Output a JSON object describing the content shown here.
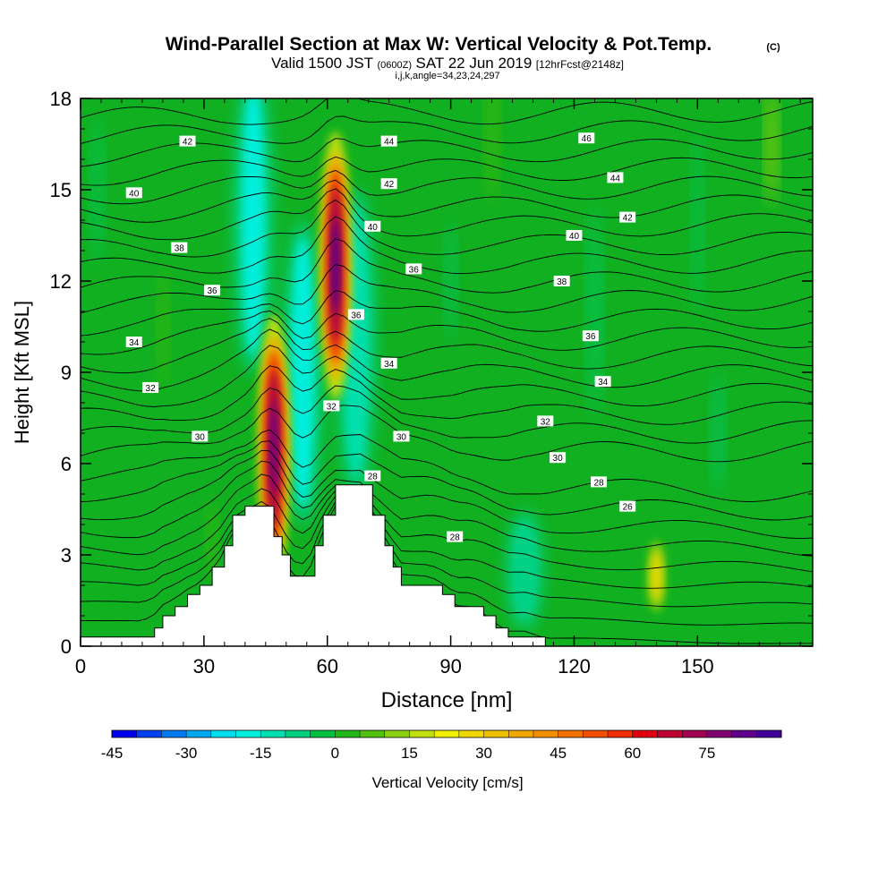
{
  "title": {
    "main": "Wind-Parallel Section at Max W: Vertical Velocity & Pot.Temp.",
    "copyright": "(C)",
    "valid_prefix": "Valid 1500 JST",
    "valid_utc": "(0600Z)",
    "valid_date": "SAT 22 Jun 2019",
    "forecast": "[12hrFcst@2148z]",
    "indices": "i,j,k,angle=34,23,24,297"
  },
  "chart_data": {
    "type": "heatmap",
    "xlabel": "Distance [nm]",
    "ylabel": "Height [Kft MSL]",
    "xlim": [
      0,
      178
    ],
    "ylim": [
      0,
      18
    ],
    "x_ticks": [
      0,
      30,
      60,
      90,
      120,
      150
    ],
    "y_ticks": [
      0,
      3,
      6,
      9,
      12,
      15,
      18
    ],
    "colorbar": {
      "label": "Vertical Velocity [cm/s]",
      "min": -45,
      "max": 90,
      "step": 5,
      "tick_labels": [
        "-45",
        "-30",
        "-15",
        "0",
        "15",
        "30",
        "45",
        "60",
        "75"
      ],
      "colors": [
        "#0000ee",
        "#0040f0",
        "#0078f0",
        "#00a8f0",
        "#00dcf0",
        "#00f0e0",
        "#00e0b0",
        "#00d080",
        "#00c040",
        "#20b818",
        "#50c010",
        "#88d010",
        "#c0e010",
        "#f0f000",
        "#f0d800",
        "#f0c000",
        "#f0a800",
        "#f09000",
        "#f07000",
        "#f05000",
        "#f03000",
        "#e00010",
        "#c00030",
        "#a00050",
        "#800070",
        "#60008c",
        "#40009a"
      ]
    },
    "terrain_kft": [
      [
        0,
        0.3
      ],
      [
        5,
        0.3
      ],
      [
        10,
        0.3
      ],
      [
        15,
        0.3
      ],
      [
        18,
        0.6
      ],
      [
        20,
        1.0
      ],
      [
        23,
        1.3
      ],
      [
        26,
        1.7
      ],
      [
        29,
        2.0
      ],
      [
        32,
        2.6
      ],
      [
        35,
        3.3
      ],
      [
        37,
        4.3
      ],
      [
        40,
        4.6
      ],
      [
        42,
        4.6
      ],
      [
        45,
        4.6
      ],
      [
        47,
        3.6
      ],
      [
        49,
        3.0
      ],
      [
        51,
        2.3
      ],
      [
        55,
        2.3
      ],
      [
        57,
        3.3
      ],
      [
        59,
        4.3
      ],
      [
        62,
        5.3
      ],
      [
        65,
        5.3
      ],
      [
        68,
        5.3
      ],
      [
        71,
        4.3
      ],
      [
        74,
        3.3
      ],
      [
        76,
        2.6
      ],
      [
        78,
        2.0
      ],
      [
        82,
        2.0
      ],
      [
        85,
        2.0
      ],
      [
        88,
        1.7
      ],
      [
        91,
        1.3
      ],
      [
        95,
        1.3
      ],
      [
        98,
        1.0
      ],
      [
        101,
        0.6
      ],
      [
        104,
        0.3
      ],
      [
        108,
        0.3
      ],
      [
        113,
        0.0
      ],
      [
        130,
        0.0
      ],
      [
        178,
        0.0
      ]
    ],
    "updrafts": [
      {
        "x": 47,
        "z": 6.5,
        "w": 80
      },
      {
        "x": 62,
        "z": 12.5,
        "w": 85
      },
      {
        "x": 140,
        "z": 2.3,
        "w": 25
      }
    ],
    "downdrafts": [
      {
        "x": 42,
        "z": 14.0,
        "w": -20
      },
      {
        "x": 54,
        "z": 9.0,
        "w": -18
      },
      {
        "x": 67,
        "z": 10.0,
        "w": -15
      },
      {
        "x": 108,
        "z": 2.5,
        "w": -12
      }
    ],
    "isentrope_labels": [
      {
        "text": "42",
        "x": 26,
        "z": 16.6
      },
      {
        "text": "44",
        "x": 75,
        "z": 16.6
      },
      {
        "text": "46",
        "x": 123,
        "z": 16.7
      },
      {
        "text": "40",
        "x": 13,
        "z": 14.9
      },
      {
        "text": "42",
        "x": 75,
        "z": 15.2
      },
      {
        "text": "44",
        "x": 130,
        "z": 15.4
      },
      {
        "text": "42",
        "x": 133,
        "z": 14.1
      },
      {
        "text": "40",
        "x": 71,
        "z": 13.8
      },
      {
        "text": "40",
        "x": 120,
        "z": 13.5
      },
      {
        "text": "38",
        "x": 24,
        "z": 13.1
      },
      {
        "text": "36",
        "x": 81,
        "z": 12.4
      },
      {
        "text": "38",
        "x": 117,
        "z": 12.0
      },
      {
        "text": "36",
        "x": 32,
        "z": 11.7
      },
      {
        "text": "36",
        "x": 67,
        "z": 10.9
      },
      {
        "text": "34",
        "x": 13,
        "z": 10.0
      },
      {
        "text": "36",
        "x": 124,
        "z": 10.2
      },
      {
        "text": "34",
        "x": 75,
        "z": 9.3
      },
      {
        "text": "34",
        "x": 127,
        "z": 8.7
      },
      {
        "text": "32",
        "x": 17,
        "z": 8.5
      },
      {
        "text": "32",
        "x": 61,
        "z": 7.9
      },
      {
        "text": "32",
        "x": 113,
        "z": 7.4
      },
      {
        "text": "30",
        "x": 29,
        "z": 6.9
      },
      {
        "text": "30",
        "x": 78,
        "z": 6.9
      },
      {
        "text": "30",
        "x": 116,
        "z": 6.2
      },
      {
        "text": "28",
        "x": 71,
        "z": 5.6
      },
      {
        "text": "28",
        "x": 126,
        "z": 5.4
      },
      {
        "text": "26",
        "x": 133,
        "z": 4.6
      },
      {
        "text": "28",
        "x": 91,
        "z": 3.6
      }
    ]
  }
}
